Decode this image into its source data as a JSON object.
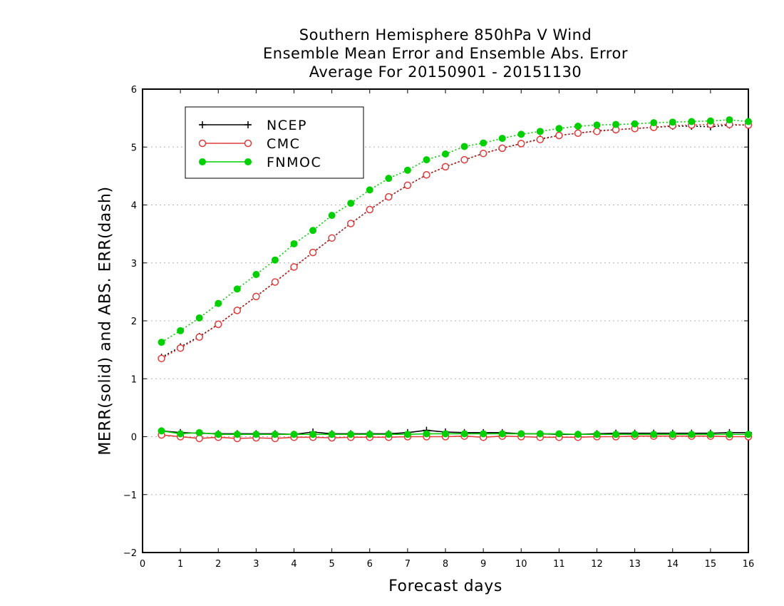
{
  "chart_data": {
    "type": "line",
    "title_lines": [
      "Southern Hemisphere 850hPa V Wind",
      "Ensemble Mean Error and Ensemble Abs. Error",
      "Average For 20150901 - 20151130"
    ],
    "xlabel": "Forecast days",
    "ylabel": "MERR(solid) and ABS. ERR(dash)",
    "xlim": [
      0,
      16
    ],
    "ylim": [
      -2,
      6
    ],
    "x_ticks": [
      "0",
      "1",
      "2",
      "3",
      "4",
      "5",
      "6",
      "7",
      "8",
      "9",
      "10",
      "11",
      "12",
      "13",
      "14",
      "15",
      "16"
    ],
    "y_ticks": [
      "−2",
      "−1",
      "0",
      "1",
      "2",
      "3",
      "4",
      "5",
      "6"
    ],
    "grid": "horizontal dotted",
    "legend_position": "top-left",
    "x": [
      0.5,
      1,
      1.5,
      2,
      2.5,
      3,
      3.5,
      4,
      4.5,
      5,
      5.5,
      6,
      6.5,
      7,
      7.5,
      8,
      8.5,
      9,
      9.5,
      10,
      10.5,
      11,
      11.5,
      12,
      12.5,
      13,
      13.5,
      14,
      14.5,
      15,
      15.5,
      16
    ],
    "series": [
      {
        "name": "NCEP",
        "color": "#000000",
        "marker": "plus",
        "abs_err": [
          1.37,
          1.55,
          1.73,
          1.94,
          2.18,
          2.42,
          2.67,
          2.93,
          3.18,
          3.43,
          3.68,
          3.92,
          4.14,
          4.34,
          4.52,
          4.66,
          4.78,
          4.89,
          4.98,
          5.06,
          5.14,
          5.2,
          5.24,
          5.28,
          5.3,
          5.32,
          5.34,
          5.36,
          5.36,
          5.35,
          5.38,
          5.38
        ],
        "mean_err": [
          0.1,
          0.07,
          0.06,
          0.05,
          0.05,
          0.05,
          0.05,
          0.04,
          0.08,
          0.05,
          0.05,
          0.05,
          0.05,
          0.07,
          0.11,
          0.08,
          0.07,
          0.07,
          0.07,
          0.05,
          0.05,
          0.04,
          0.04,
          0.05,
          0.06,
          0.06,
          0.06,
          0.06,
          0.06,
          0.06,
          0.07,
          0.07
        ]
      },
      {
        "name": "CMC",
        "color": "#e03c3c",
        "marker": "open-circle",
        "abs_err": [
          1.35,
          1.53,
          1.72,
          1.94,
          2.18,
          2.42,
          2.67,
          2.93,
          3.18,
          3.43,
          3.68,
          3.92,
          4.14,
          4.34,
          4.52,
          4.66,
          4.78,
          4.89,
          4.98,
          5.06,
          5.13,
          5.2,
          5.24,
          5.27,
          5.3,
          5.32,
          5.34,
          5.37,
          5.38,
          5.39,
          5.39,
          5.38
        ],
        "mean_err": [
          0.03,
          0.0,
          -0.03,
          -0.01,
          -0.03,
          -0.02,
          -0.03,
          -0.01,
          -0.01,
          -0.02,
          -0.01,
          -0.01,
          -0.01,
          0.0,
          0.0,
          0.0,
          0.01,
          -0.01,
          0.01,
          0.0,
          -0.01,
          -0.01,
          -0.01,
          0.0,
          0.0,
          0.01,
          0.01,
          0.01,
          0.01,
          0.01,
          0.0,
          0.0
        ]
      },
      {
        "name": "FNMOC",
        "color": "#00d000",
        "marker": "filled-circle",
        "abs_err": [
          1.63,
          1.83,
          2.05,
          2.3,
          2.55,
          2.8,
          3.05,
          3.33,
          3.56,
          3.82,
          4.03,
          4.26,
          4.46,
          4.6,
          4.78,
          4.88,
          5.01,
          5.07,
          5.15,
          5.22,
          5.27,
          5.32,
          5.36,
          5.38,
          5.39,
          5.4,
          5.42,
          5.43,
          5.44,
          5.45,
          5.47,
          5.44
        ],
        "mean_err": [
          0.1,
          0.05,
          0.07,
          0.04,
          0.04,
          0.04,
          0.04,
          0.04,
          0.04,
          0.04,
          0.04,
          0.04,
          0.04,
          0.04,
          0.05,
          0.05,
          0.05,
          0.05,
          0.05,
          0.05,
          0.05,
          0.05,
          0.04,
          0.04,
          0.04,
          0.04,
          0.04,
          0.04,
          0.04,
          0.04,
          0.04,
          0.04
        ]
      }
    ]
  }
}
